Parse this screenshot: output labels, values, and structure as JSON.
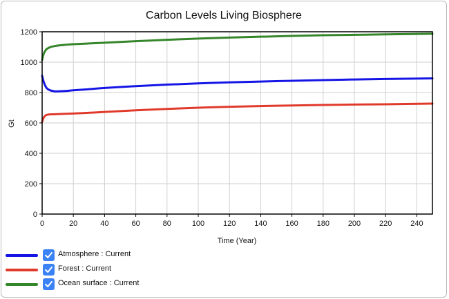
{
  "chart_data": {
    "type": "line",
    "title": "Carbon Levels Living Biosphere",
    "xlabel": "Time (Year)",
    "ylabel": "Gt",
    "xlim": [
      0,
      250
    ],
    "ylim": [
      0,
      1200
    ],
    "x_ticks": [
      0,
      20,
      40,
      60,
      80,
      100,
      120,
      140,
      160,
      180,
      200,
      220,
      240
    ],
    "y_ticks": [
      0,
      200,
      400,
      600,
      800,
      1000,
      1200
    ],
    "grid": true,
    "legend_position": "bottom-left",
    "series": [
      {
        "name": "Atmosphere : Current",
        "color": "#1515e6",
        "x": [
          0,
          1,
          2,
          3,
          5,
          8,
          10,
          15,
          20,
          30,
          40,
          60,
          80,
          100,
          120,
          150,
          180,
          200,
          220,
          250
        ],
        "y": [
          910,
          870,
          845,
          828,
          815,
          808,
          808,
          810,
          815,
          822,
          830,
          842,
          852,
          860,
          867,
          875,
          882,
          886,
          889,
          893
        ]
      },
      {
        "name": "Forest : Current",
        "color": "#e03a2b",
        "x": [
          0,
          1,
          2,
          3,
          5,
          8,
          10,
          20,
          40,
          60,
          80,
          100,
          120,
          150,
          180,
          200,
          220,
          250
        ],
        "y": [
          607,
          635,
          648,
          653,
          656,
          657,
          658,
          662,
          672,
          683,
          692,
          700,
          706,
          713,
          718,
          721,
          723,
          727
        ]
      },
      {
        "name": "Ocean surface : Current",
        "color": "#35852a",
        "x": [
          0,
          1,
          2,
          3,
          5,
          8,
          10,
          15,
          20,
          40,
          60,
          80,
          100,
          120,
          150,
          180,
          200,
          220,
          250
        ],
        "y": [
          1015,
          1055,
          1075,
          1087,
          1098,
          1106,
          1109,
          1114,
          1118,
          1128,
          1138,
          1147,
          1155,
          1162,
          1170,
          1177,
          1180,
          1183,
          1187
        ]
      }
    ]
  },
  "legend": {
    "items": [
      {
        "label": "Atmosphere : Current",
        "color": "#1515e6",
        "checked": true
      },
      {
        "label": "Forest : Current",
        "color": "#e03a2b",
        "checked": true
      },
      {
        "label": "Ocean surface : Current",
        "color": "#35852a",
        "checked": true
      }
    ],
    "checkbox_color": "#3b82f6"
  }
}
